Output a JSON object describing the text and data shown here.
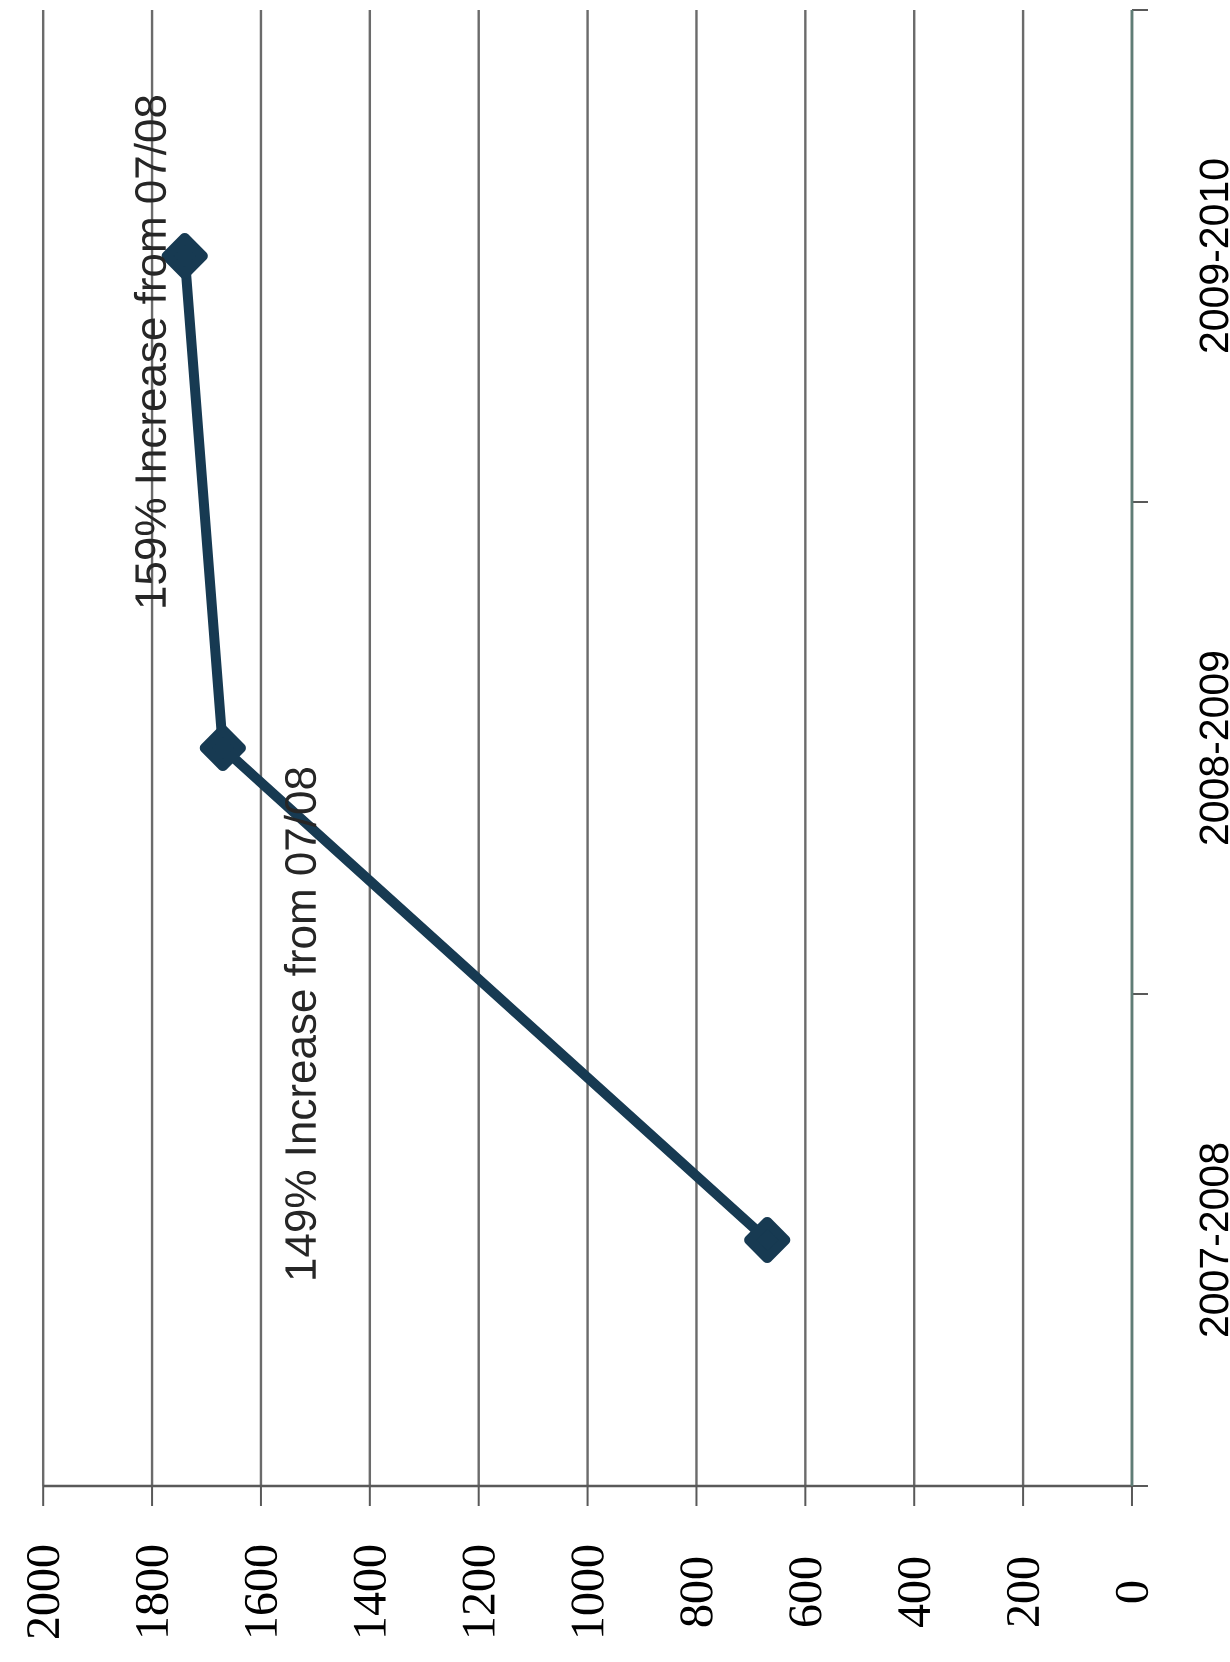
{
  "chart_data": {
    "type": "line",
    "orientation": "horizontal",
    "categories": [
      "2009-2010",
      "2008-2009",
      "2007-2008"
    ],
    "series": [
      {
        "color": "#173a52",
        "values": [
          1740,
          1670,
          670
        ]
      }
    ],
    "xlim": [
      2000,
      0
    ],
    "xticks": [
      0,
      200,
      400,
      600,
      800,
      1000,
      1200,
      1400,
      1600,
      1800,
      2000
    ],
    "grid": "x",
    "marker": "diamond",
    "line_style": "solid",
    "annotations": [
      "149% Increase from 07/08",
      "159% Increase from 07/08"
    ]
  }
}
